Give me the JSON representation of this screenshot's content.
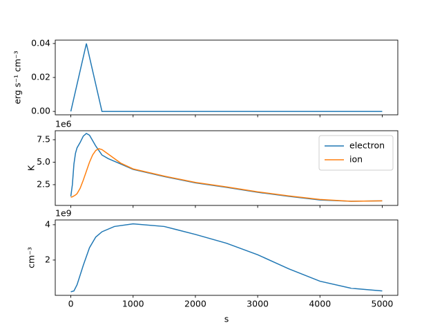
{
  "chart_data": [
    {
      "type": "line",
      "y_label": "erg s⁻¹ cm⁻³",
      "x": [
        0,
        250,
        500,
        1000,
        2000,
        3000,
        4000,
        5000
      ],
      "series": [
        {
          "color": "#1f77b4",
          "values": [
            0,
            0.04,
            0,
            0,
            0,
            0,
            0,
            0
          ]
        }
      ],
      "xlim": [
        -250,
        5250
      ],
      "xticks": [
        0,
        1000,
        2000,
        3000,
        4000,
        5000
      ],
      "ylim": [
        -0.002,
        0.042
      ],
      "yticks": [
        {
          "value": 0,
          "label": "0.00"
        },
        {
          "value": 0.02,
          "label": "0.02"
        },
        {
          "value": 0.04,
          "label": "0.04"
        }
      ]
    },
    {
      "type": "line",
      "y_label": "K",
      "y_offset_label": "1e6",
      "legend": "upper right",
      "x": [
        0,
        25,
        50,
        75,
        100,
        150,
        200,
        250,
        300,
        350,
        400,
        450,
        500,
        600,
        800,
        1000,
        1500,
        2000,
        2500,
        3000,
        3500,
        4000,
        4500,
        5000
      ],
      "series": [
        {
          "name": "electron",
          "color": "#1f77b4",
          "values": [
            1.2,
            2.5,
            4.8,
            6.0,
            6.6,
            7.2,
            7.9,
            8.2,
            8.0,
            7.4,
            6.8,
            6.3,
            5.8,
            5.4,
            4.8,
            4.2,
            3.4,
            2.7,
            2.2,
            1.65,
            1.2,
            0.8,
            0.65,
            0.7
          ]
        },
        {
          "name": "ion",
          "color": "#ff7f0e",
          "values": [
            1.1,
            1.15,
            1.25,
            1.35,
            1.5,
            2.1,
            3.0,
            4.0,
            5.0,
            5.8,
            6.3,
            6.5,
            6.4,
            5.9,
            4.9,
            4.25,
            3.45,
            2.75,
            2.25,
            1.7,
            1.25,
            0.85,
            0.65,
            0.7
          ]
        }
      ],
      "xlim": [
        -250,
        5250
      ],
      "xticks": [
        0,
        1000,
        2000,
        3000,
        4000,
        5000
      ],
      "ylim": [
        0.19,
        8.5
      ],
      "yticks": [
        2.5,
        {
          "value": 5,
          "label": "5.0"
        },
        7.5
      ]
    },
    {
      "type": "line",
      "y_label": "cm⁻³",
      "y_offset_label": "1e9",
      "x_label": "s",
      "x": [
        0,
        50,
        100,
        200,
        300,
        400,
        500,
        700,
        1000,
        1500,
        2000,
        2500,
        3000,
        3500,
        4000,
        4500,
        5000
      ],
      "series": [
        {
          "color": "#1f77b4",
          "values": [
            0.2,
            0.25,
            0.6,
            1.7,
            2.7,
            3.3,
            3.6,
            3.9,
            4.05,
            3.9,
            3.45,
            2.95,
            2.3,
            1.5,
            0.8,
            0.4,
            0.25
          ]
        }
      ],
      "xlim": [
        -250,
        5250
      ],
      "xticks": [
        0,
        1000,
        2000,
        3000,
        4000,
        5000
      ],
      "ylim": [
        0,
        4.27
      ],
      "yticks": [
        2,
        4
      ]
    }
  ]
}
